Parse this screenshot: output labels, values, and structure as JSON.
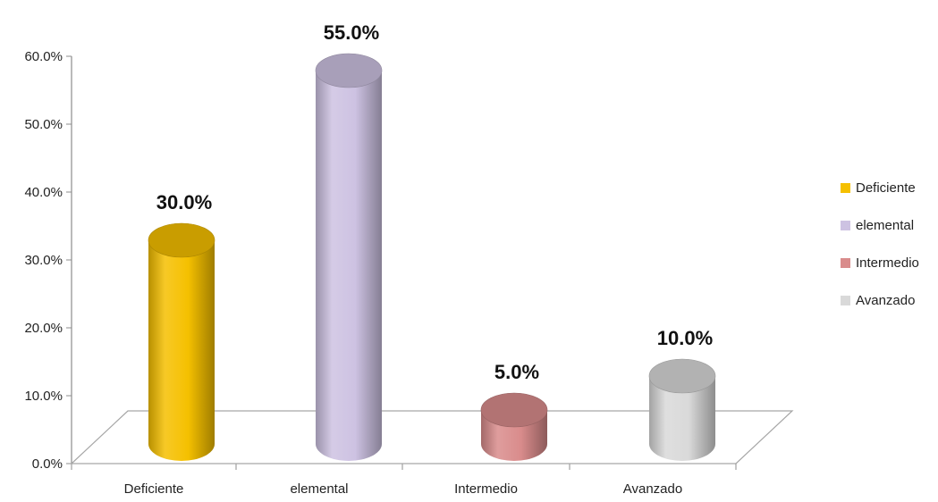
{
  "chart_data": {
    "type": "bar",
    "style": "3d-cylinder",
    "categories": [
      "Deficiente",
      "elemental",
      "Intermedio",
      "Avanzado"
    ],
    "values": [
      30.0,
      55.0,
      5.0,
      10.0
    ],
    "data_labels": [
      "30.0%",
      "55.0%",
      "5.0%",
      "10.0%"
    ],
    "y_ticks": [
      "0.0%",
      "10.0%",
      "20.0%",
      "30.0%",
      "40.0%",
      "50.0%",
      "60.0%"
    ],
    "ylim": [
      0,
      60
    ],
    "grid": false,
    "legend_position": "right",
    "legend": [
      "Deficiente",
      "elemental",
      "Intermedio",
      "Avanzado"
    ],
    "colors": [
      "#f5c000",
      "#cdc2e2",
      "#d98c8c",
      "#d9d9d9"
    ]
  }
}
